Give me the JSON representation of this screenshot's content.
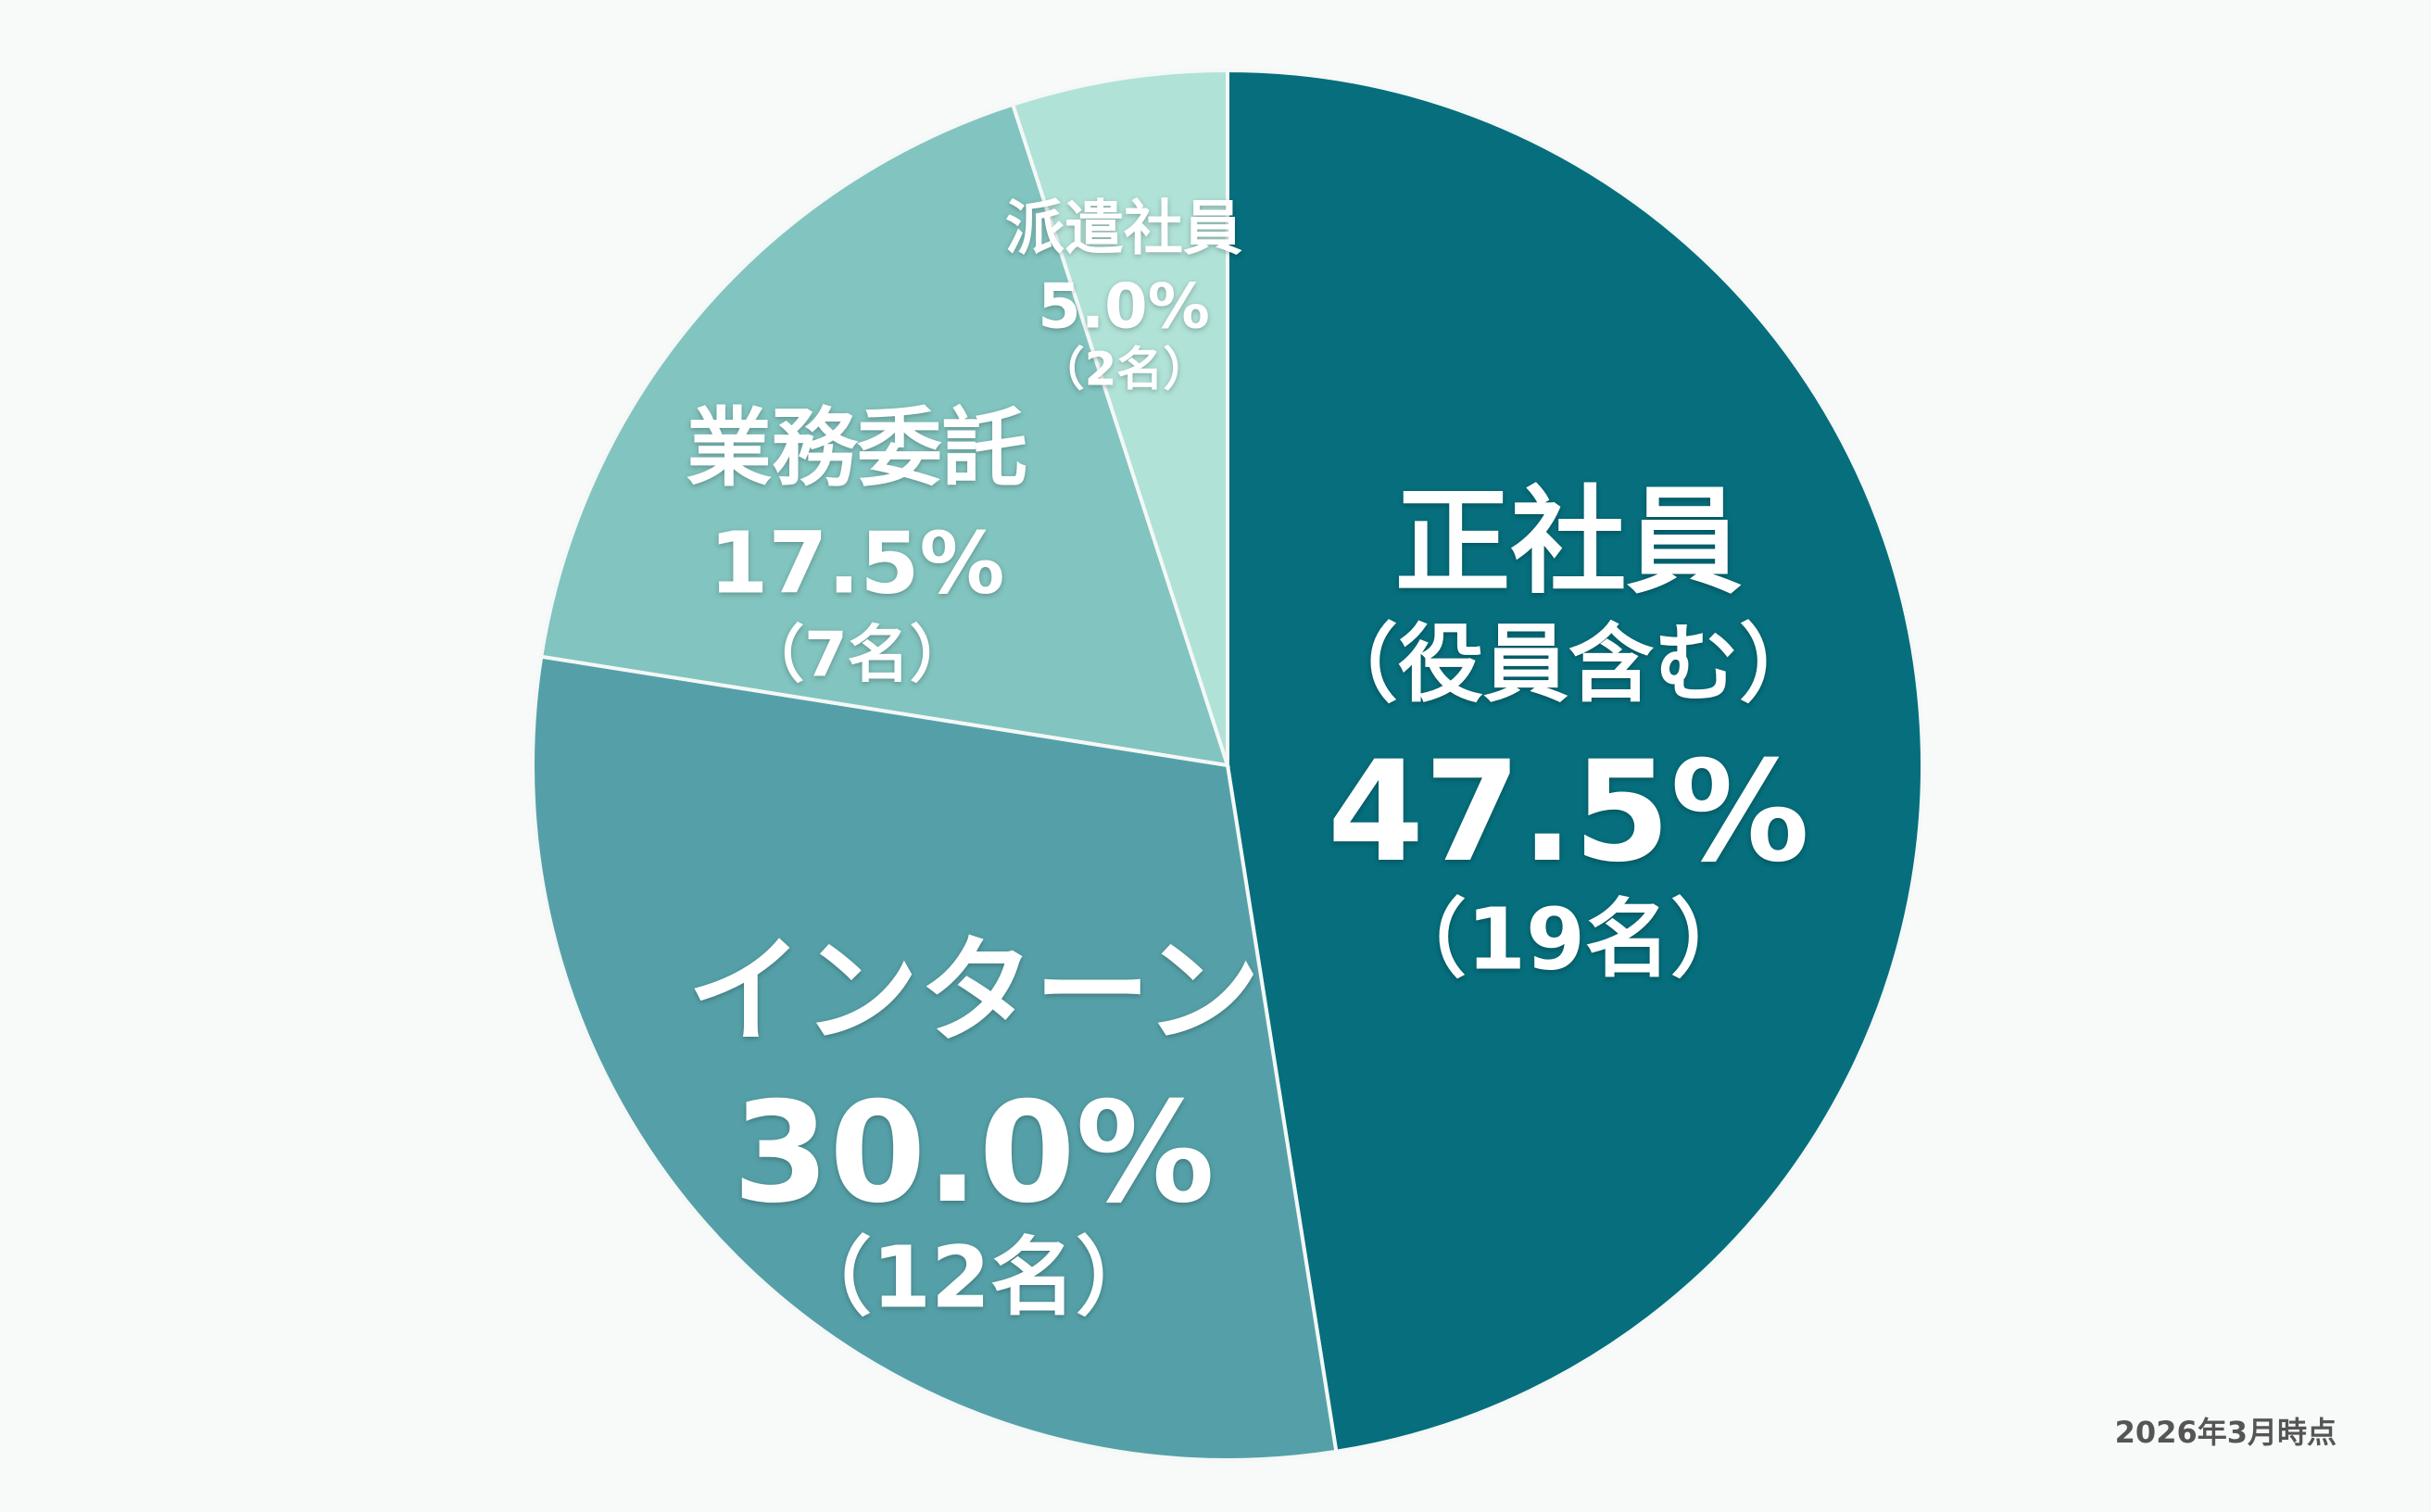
{
  "chart_data": {
    "type": "pie",
    "categories": [
      "正社員",
      "インターン",
      "業務委託",
      "派遣社員"
    ],
    "category_notes": [
      "（役員含む）",
      null,
      null,
      null
    ],
    "values": [
      47.5,
      30.0,
      17.5,
      5.0
    ],
    "value_labels": [
      "47.5%",
      "30.0%",
      "17.5%",
      "5.0%"
    ],
    "counts": [
      19,
      12,
      7,
      2
    ],
    "count_labels": [
      "（19名）",
      "（12名）",
      "（7名）",
      "（2名）"
    ],
    "colors": [
      "#066e7c",
      "#55a0a8",
      "#82c4bf",
      "#b0e2d8"
    ],
    "footnote": "2026年3月時点"
  }
}
